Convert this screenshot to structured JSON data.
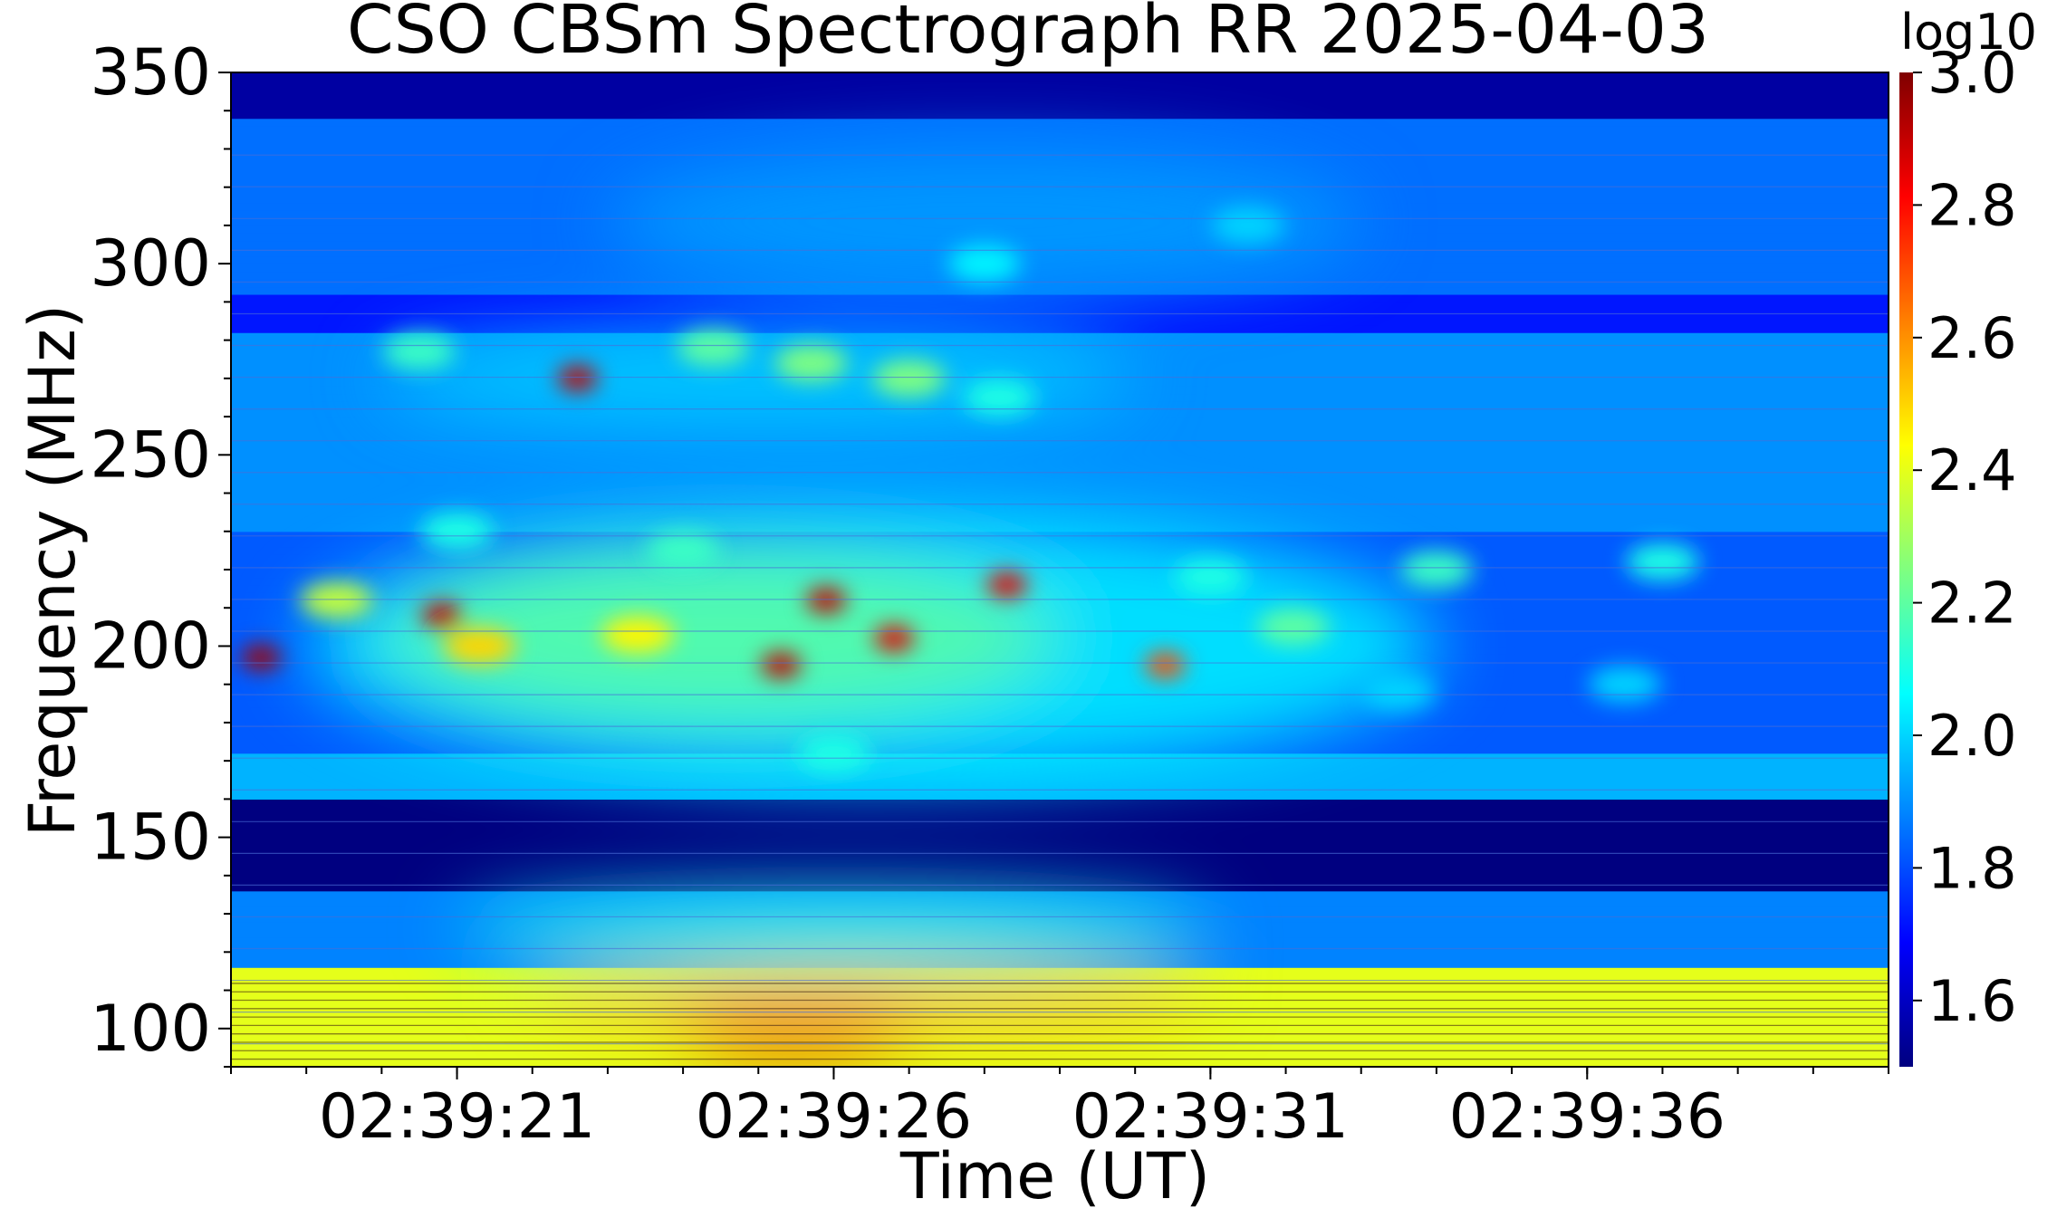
{
  "chart_data": {
    "type": "heatmap",
    "title": "CSO CBSm Spectrograph RR 2025-04-03",
    "xlabel": "Time (UT)",
    "ylabel": "Frequency (MHz)",
    "colorbar_label": "log10",
    "x_ticks": [
      "02:39:21",
      "02:39:26",
      "02:39:31",
      "02:39:36"
    ],
    "y_ticks": [
      100,
      150,
      200,
      250,
      300,
      350
    ],
    "colorbar_ticks": [
      "1.6",
      "1.8",
      "2.0",
      "2.2",
      "2.4",
      "2.6",
      "2.8",
      "3.0"
    ],
    "x_range": [
      "02:39:18",
      "02:39:40"
    ],
    "y_range": [
      90,
      350
    ],
    "color_range": [
      1.5,
      3.0
    ],
    "colormap": "jet",
    "blank_band_mhz": [
      136,
      160
    ],
    "burst_patches": [
      {
        "t": 20.5,
        "f": 277,
        "v": 2.15
      },
      {
        "t": 22.6,
        "f": 270,
        "v": 2.9
      },
      {
        "t": 24.4,
        "f": 278,
        "v": 2.2
      },
      {
        "t": 25.7,
        "f": 274,
        "v": 2.25
      },
      {
        "t": 27.0,
        "f": 270,
        "v": 2.25
      },
      {
        "t": 28.2,
        "f": 265,
        "v": 2.1
      },
      {
        "t": 21.0,
        "f": 230,
        "v": 2.1
      },
      {
        "t": 24.0,
        "f": 225,
        "v": 2.15
      },
      {
        "t": 19.4,
        "f": 212,
        "v": 2.35
      },
      {
        "t": 18.4,
        "f": 197,
        "v": 2.95
      },
      {
        "t": 20.8,
        "f": 208,
        "v": 2.9
      },
      {
        "t": 21.3,
        "f": 200,
        "v": 2.5
      },
      {
        "t": 23.4,
        "f": 203,
        "v": 2.45
      },
      {
        "t": 25.3,
        "f": 195,
        "v": 2.9
      },
      {
        "t": 25.9,
        "f": 212,
        "v": 2.9
      },
      {
        "t": 26.8,
        "f": 202,
        "v": 2.85
      },
      {
        "t": 28.3,
        "f": 216,
        "v": 2.85
      },
      {
        "t": 30.4,
        "f": 195,
        "v": 2.7
      },
      {
        "t": 31.0,
        "f": 218,
        "v": 2.1
      },
      {
        "t": 32.1,
        "f": 205,
        "v": 2.2
      },
      {
        "t": 34.0,
        "f": 220,
        "v": 2.15
      },
      {
        "t": 37.0,
        "f": 222,
        "v": 2.1
      },
      {
        "t": 33.5,
        "f": 188,
        "v": 2.0
      },
      {
        "t": 36.5,
        "f": 190,
        "v": 2.0
      },
      {
        "t": 26.0,
        "f": 172,
        "v": 2.1
      },
      {
        "t": 28.0,
        "f": 300,
        "v": 2.05
      },
      {
        "t": 31.5,
        "f": 310,
        "v": 2.0
      }
    ]
  }
}
